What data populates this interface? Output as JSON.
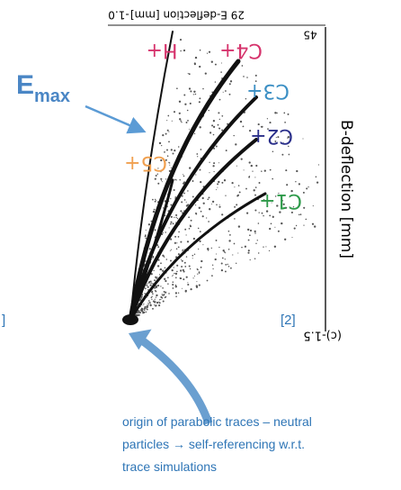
{
  "figure": {
    "top_axis": {
      "left_tick": "-1.0",
      "label": "29 E-deflection [mm]",
      "right_tick": "45"
    },
    "right_axis": {
      "label": "B-deflection [mm]",
      "bottom_tick": "(c)-1.5"
    },
    "traces": [
      "H+",
      "C4+",
      "C3+",
      "C2+",
      "C5+",
      "C1+"
    ]
  },
  "annotation": {
    "e": "E",
    "sub": "max"
  },
  "reference": "[2]",
  "left_fragment": "]",
  "caption": [
    "origin of parabolic traces – neutral",
    "particles → self-referencing w.r.t.",
    "trace simulations"
  ]
}
